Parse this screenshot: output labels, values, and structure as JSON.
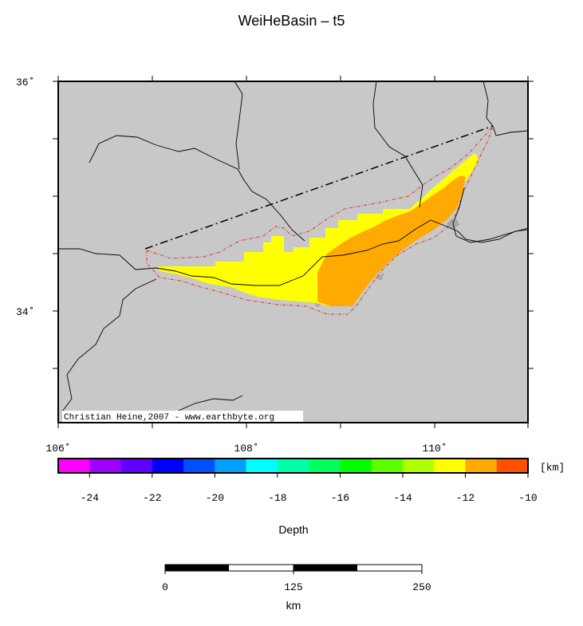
{
  "map": {
    "title": "WeiHeBasin – t5",
    "lat_labels": [
      "36˚",
      "34˚"
    ],
    "lon_labels": [
      "106˚",
      "108˚",
      "110˚"
    ],
    "credit": "Christian Heine,2007 - www.earthbyte.org",
    "land_color": "#c8c8c8",
    "border_color": "#000000",
    "outline_color": "#e03030"
  },
  "legend": {
    "unit": "[km]",
    "label": "Depth",
    "ticks": [
      "-24",
      "-22",
      "-20",
      "-18",
      "-16",
      "-14",
      "-12",
      "-10"
    ],
    "colors": [
      "#ff00ff",
      "#a000ff",
      "#6000ff",
      "#0000ff",
      "#0050ff",
      "#00a0ff",
      "#00ffff",
      "#00ffaa",
      "#00ff60",
      "#00ff00",
      "#60ff00",
      "#b0ff00",
      "#ffff00",
      "#ffaa00",
      "#ff5000"
    ]
  },
  "scalebar": {
    "ticks": [
      "0",
      "125",
      "250"
    ],
    "unit": "km"
  }
}
